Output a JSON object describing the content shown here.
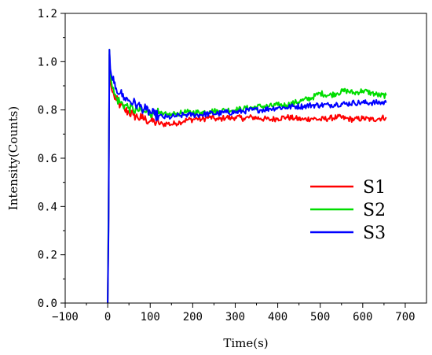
{
  "chart_data": {
    "type": "line",
    "title": "",
    "xlabel": "Time(s)",
    "ylabel": "Intensity(Counts)",
    "xlim": [
      -100,
      750
    ],
    "ylim": [
      0.0,
      1.2
    ],
    "x_ticks": [
      -100,
      0,
      100,
      200,
      300,
      400,
      500,
      600,
      700
    ],
    "x_tick_labels": [
      "−100",
      "0",
      "100",
      "200",
      "300",
      "400",
      "500",
      "600",
      "700"
    ],
    "y_ticks": [
      0.0,
      0.2,
      0.4,
      0.6,
      0.8,
      1.0,
      1.2
    ],
    "y_tick_labels": [
      "0.0",
      "0.2",
      "0.4",
      "0.6",
      "0.8",
      "1.0",
      "1.2"
    ],
    "grid": false,
    "legend_position": "lower-right",
    "series": [
      {
        "name": "S1",
        "color": "#ff0000",
        "x": [
          0,
          2,
          4,
          6,
          10,
          15,
          20,
          30,
          40,
          50,
          60,
          70,
          80,
          90,
          100,
          110,
          120,
          130,
          140,
          150,
          160,
          170,
          180,
          190,
          200,
          210,
          220,
          230,
          240,
          250,
          260,
          270,
          280,
          290,
          300,
          320,
          340,
          360,
          380,
          400,
          420,
          440,
          460,
          480,
          500,
          520,
          540,
          560,
          580,
          600,
          620,
          640,
          655
        ],
        "y": [
          0.0,
          0.35,
          1.03,
          0.92,
          0.88,
          0.86,
          0.84,
          0.82,
          0.8,
          0.79,
          0.78,
          0.77,
          0.765,
          0.76,
          0.755,
          0.75,
          0.745,
          0.74,
          0.745,
          0.74,
          0.745,
          0.75,
          0.755,
          0.76,
          0.76,
          0.765,
          0.76,
          0.765,
          0.77,
          0.765,
          0.76,
          0.765,
          0.77,
          0.765,
          0.77,
          0.765,
          0.77,
          0.765,
          0.76,
          0.765,
          0.77,
          0.765,
          0.76,
          0.765,
          0.76,
          0.765,
          0.77,
          0.765,
          0.76,
          0.765,
          0.76,
          0.765,
          0.77
        ]
      },
      {
        "name": "S2",
        "color": "#00dd00",
        "x": [
          0,
          2,
          4,
          6,
          10,
          15,
          20,
          30,
          40,
          50,
          60,
          70,
          80,
          90,
          100,
          110,
          120,
          130,
          140,
          150,
          160,
          170,
          180,
          190,
          200,
          220,
          240,
          260,
          280,
          300,
          320,
          340,
          360,
          380,
          400,
          420,
          440,
          460,
          480,
          500,
          520,
          540,
          560,
          580,
          600,
          620,
          640,
          655
        ],
        "y": [
          0.0,
          0.4,
          1.05,
          0.95,
          0.9,
          0.87,
          0.85,
          0.83,
          0.82,
          0.81,
          0.8,
          0.8,
          0.795,
          0.79,
          0.79,
          0.785,
          0.785,
          0.78,
          0.78,
          0.78,
          0.785,
          0.785,
          0.79,
          0.79,
          0.79,
          0.79,
          0.795,
          0.795,
          0.8,
          0.8,
          0.805,
          0.81,
          0.815,
          0.815,
          0.82,
          0.82,
          0.83,
          0.84,
          0.85,
          0.87,
          0.86,
          0.87,
          0.88,
          0.87,
          0.88,
          0.87,
          0.86,
          0.86
        ]
      },
      {
        "name": "S3",
        "color": "#0000ff",
        "x": [
          0,
          2,
          4,
          6,
          10,
          15,
          20,
          30,
          40,
          50,
          60,
          70,
          80,
          90,
          100,
          110,
          120,
          130,
          140,
          150,
          160,
          170,
          180,
          190,
          200,
          220,
          240,
          260,
          280,
          300,
          320,
          340,
          360,
          380,
          400,
          420,
          440,
          460,
          480,
          500,
          520,
          540,
          560,
          580,
          600,
          620,
          640,
          655
        ],
        "y": [
          0.0,
          0.3,
          1.05,
          0.97,
          0.93,
          0.91,
          0.89,
          0.87,
          0.85,
          0.84,
          0.83,
          0.82,
          0.81,
          0.8,
          0.79,
          0.78,
          0.775,
          0.77,
          0.77,
          0.77,
          0.775,
          0.775,
          0.78,
          0.78,
          0.78,
          0.78,
          0.785,
          0.785,
          0.79,
          0.79,
          0.795,
          0.8,
          0.8,
          0.805,
          0.81,
          0.81,
          0.815,
          0.815,
          0.82,
          0.82,
          0.82,
          0.825,
          0.825,
          0.83,
          0.83,
          0.83,
          0.83,
          0.83
        ]
      }
    ]
  }
}
